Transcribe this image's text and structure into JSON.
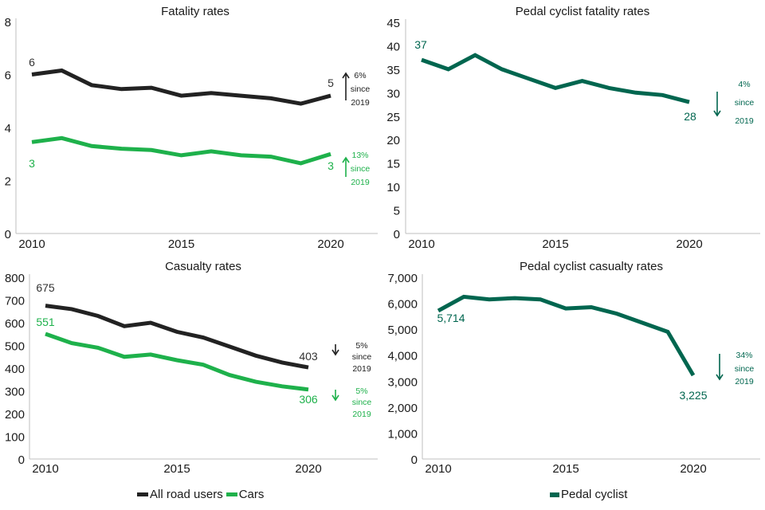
{
  "colors": {
    "all_road_users": "#222222",
    "cars": "#1eb14b",
    "pedal_cyclist": "#00664f",
    "axis": "#bfbfbf",
    "text": "#1a1a1a"
  },
  "chart_data": [
    {
      "id": "fatality",
      "type": "line",
      "title": "Fatality rates",
      "x": [
        2010,
        2011,
        2012,
        2013,
        2014,
        2015,
        2016,
        2017,
        2018,
        2019,
        2020
      ],
      "xticks": [
        "2010",
        "2015",
        "2020"
      ],
      "ylim": [
        0,
        8
      ],
      "yticks": [
        "0",
        "2",
        "4",
        "6",
        "8"
      ],
      "grid": false,
      "series": [
        {
          "name": "All road users",
          "color_key": "all_road_users",
          "values": [
            6.0,
            6.15,
            5.6,
            5.45,
            5.5,
            5.2,
            5.3,
            5.2,
            5.1,
            4.9,
            5.2
          ],
          "start_label": "6",
          "end_label": "5",
          "change": {
            "direction": "up",
            "lines": [
              "6%",
              "since",
              "2019"
            ]
          }
        },
        {
          "name": "Cars",
          "color_key": "cars",
          "values": [
            3.45,
            3.6,
            3.3,
            3.2,
            3.15,
            2.95,
            3.1,
            2.95,
            2.9,
            2.65,
            3.0
          ],
          "start_label": "3",
          "end_label": "3",
          "change": {
            "direction": "up",
            "lines": [
              "13%",
              "since",
              "2019"
            ]
          }
        }
      ]
    },
    {
      "id": "cyclist_fatality",
      "type": "line",
      "title": "Pedal cyclist fatality rates",
      "x": [
        2010,
        2011,
        2012,
        2013,
        2014,
        2015,
        2016,
        2017,
        2018,
        2019,
        2020
      ],
      "xticks": [
        "2010",
        "2015",
        "2020"
      ],
      "ylim": [
        0,
        45
      ],
      "yticks": [
        "0",
        "5",
        "10",
        "15",
        "20",
        "25",
        "30",
        "35",
        "40",
        "45"
      ],
      "grid": false,
      "series": [
        {
          "name": "Pedal cyclist",
          "color_key": "pedal_cyclist",
          "values": [
            37,
            35,
            38,
            35,
            33,
            31,
            32.5,
            31,
            30,
            29.5,
            28
          ],
          "start_label": "37",
          "end_label": "28",
          "change": {
            "direction": "down",
            "lines": [
              "4%",
              "since",
              "2019"
            ]
          }
        }
      ]
    },
    {
      "id": "casualty",
      "type": "line",
      "title": "Casualty rates",
      "x": [
        2010,
        2011,
        2012,
        2013,
        2014,
        2015,
        2016,
        2017,
        2018,
        2019,
        2020
      ],
      "xticks": [
        "2010",
        "2015",
        "2020"
      ],
      "ylim": [
        0,
        800
      ],
      "yticks": [
        "0",
        "100",
        "200",
        "300",
        "400",
        "500",
        "600",
        "700",
        "800"
      ],
      "grid": false,
      "series": [
        {
          "name": "All road users",
          "color_key": "all_road_users",
          "values": [
            675,
            660,
            630,
            585,
            600,
            560,
            535,
            495,
            455,
            425,
            403
          ],
          "start_label": "675",
          "end_label": "403",
          "change": {
            "direction": "down",
            "lines": [
              "5%",
              "since",
              "2019"
            ]
          }
        },
        {
          "name": "Cars",
          "color_key": "cars",
          "values": [
            551,
            510,
            490,
            450,
            460,
            435,
            415,
            370,
            340,
            320,
            306
          ],
          "start_label": "551",
          "end_label": "306",
          "change": {
            "direction": "down",
            "lines": [
              "5%",
              "since",
              "2019"
            ]
          }
        }
      ]
    },
    {
      "id": "cyclist_casualty",
      "type": "line",
      "title": "Pedal cyclist casualty rates",
      "x": [
        2010,
        2011,
        2012,
        2013,
        2014,
        2015,
        2016,
        2017,
        2018,
        2019,
        2020
      ],
      "xticks": [
        "2010",
        "2015",
        "2020"
      ],
      "ylim": [
        0,
        7000
      ],
      "yticks": [
        "0",
        "1,000",
        "2,000",
        "3,000",
        "4,000",
        "5,000",
        "6,000",
        "7,000"
      ],
      "grid": false,
      "series": [
        {
          "name": "Pedal cyclist",
          "color_key": "pedal_cyclist",
          "values": [
            5714,
            6250,
            6150,
            6200,
            6150,
            5800,
            5850,
            5600,
            5250,
            4900,
            3225
          ],
          "start_label": "5,714",
          "end_label": "3,225",
          "change": {
            "direction": "down",
            "lines": [
              "34%",
              "since",
              "2019"
            ]
          }
        }
      ]
    }
  ],
  "legends": {
    "left": [
      {
        "label": "All road users",
        "color_key": "all_road_users"
      },
      {
        "label": "Cars",
        "color_key": "cars"
      }
    ],
    "right": [
      {
        "label": "Pedal cyclist",
        "color_key": "pedal_cyclist"
      }
    ]
  }
}
